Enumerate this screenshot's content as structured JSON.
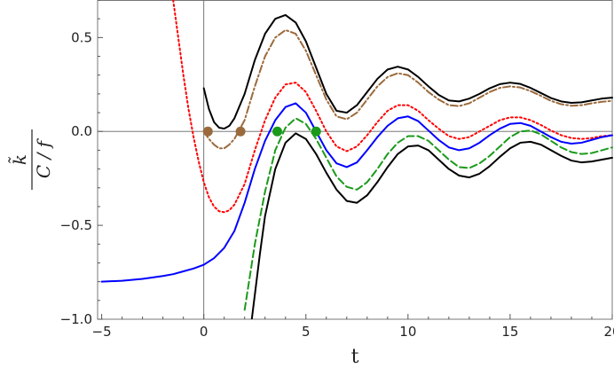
{
  "chart_data": {
    "type": "line",
    "title": "",
    "xlabel": "t",
    "ylabel": {
      "numerator": "k̃",
      "denominator": "C / f"
    },
    "xlim": [
      -5.2,
      20
    ],
    "ylim": [
      -1.0,
      0.7
    ],
    "xticks": [
      -5,
      0,
      5,
      10,
      15,
      20
    ],
    "xtick_labels": [
      "−5",
      "0",
      "5",
      "10",
      "15",
      "20"
    ],
    "yticks": [
      -1.0,
      -0.5,
      0.0,
      0.5
    ],
    "ytick_labels": [
      "−1.0",
      "−0.5",
      "0.0",
      "0.5"
    ],
    "grid": false,
    "legend": "none",
    "series": [
      {
        "color": "#000000",
        "style": "solid",
        "x": [
          0.0,
          0.25,
          0.5,
          0.75,
          1.0,
          1.25,
          1.5,
          2.0,
          2.5,
          3.0,
          3.5,
          4.0,
          4.5,
          5.0,
          5.5,
          6.0,
          6.5,
          7.0,
          7.5,
          8.0,
          8.5,
          9.0,
          9.5,
          10.0,
          10.5,
          11.0,
          11.5,
          12.0,
          12.5,
          13.0,
          13.5,
          14.0,
          14.5,
          15.0,
          15.5,
          16.0,
          16.5,
          17.0,
          17.5,
          18.0,
          18.5,
          19.0,
          19.5,
          20.0
        ],
        "y": [
          0.23,
          0.12,
          0.05,
          0.02,
          0.015,
          0.03,
          0.07,
          0.2,
          0.38,
          0.52,
          0.6,
          0.62,
          0.58,
          0.48,
          0.34,
          0.2,
          0.11,
          0.1,
          0.14,
          0.21,
          0.28,
          0.33,
          0.345,
          0.33,
          0.29,
          0.24,
          0.195,
          0.165,
          0.16,
          0.175,
          0.2,
          0.23,
          0.252,
          0.26,
          0.253,
          0.232,
          0.205,
          0.178,
          0.16,
          0.152,
          0.155,
          0.165,
          0.175,
          0.18
        ]
      },
      {
        "color": "#9b6a3c",
        "style": "dashdot",
        "x": [
          0.0,
          0.25,
          0.5,
          0.75,
          1.0,
          1.25,
          1.5,
          2.0,
          2.5,
          3.0,
          3.5,
          4.0,
          4.5,
          5.0,
          5.5,
          6.0,
          6.5,
          7.0,
          7.5,
          8.0,
          8.5,
          9.0,
          9.5,
          10.0,
          10.5,
          11.0,
          11.5,
          12.0,
          12.5,
          13.0,
          13.5,
          14.0,
          14.5,
          15.0,
          15.5,
          16.0,
          16.5,
          17.0,
          17.5,
          18.0,
          18.5,
          19.0,
          19.5,
          20.0
        ],
        "y": [
          0.0,
          -0.04,
          -0.07,
          -0.09,
          -0.09,
          -0.07,
          -0.04,
          0.06,
          0.24,
          0.4,
          0.5,
          0.54,
          0.52,
          0.43,
          0.3,
          0.17,
          0.08,
          0.065,
          0.1,
          0.17,
          0.24,
          0.29,
          0.31,
          0.3,
          0.26,
          0.21,
          0.17,
          0.14,
          0.135,
          0.15,
          0.18,
          0.21,
          0.232,
          0.24,
          0.234,
          0.215,
          0.19,
          0.163,
          0.145,
          0.137,
          0.14,
          0.15,
          0.158,
          0.163
        ]
      },
      {
        "color": "#ff0000",
        "style": "dotted",
        "x": [
          -1.5,
          -1.25,
          -1.0,
          -0.75,
          -0.5,
          -0.25,
          0.0,
          0.25,
          0.5,
          0.75,
          1.0,
          1.25,
          1.5,
          2.0,
          2.5,
          3.0,
          3.5,
          4.0,
          4.5,
          5.0,
          5.5,
          6.0,
          6.5,
          7.0,
          7.5,
          8.0,
          8.5,
          9.0,
          9.5,
          10.0,
          10.5,
          11.0,
          11.5,
          12.0,
          12.5,
          13.0,
          13.5,
          14.0,
          14.5,
          15.0,
          15.5,
          16.0,
          16.5,
          17.0,
          17.5,
          18.0,
          18.5,
          19.0,
          19.5,
          20.0
        ],
        "y": [
          0.7,
          0.5,
          0.3,
          0.12,
          -0.03,
          -0.16,
          -0.27,
          -0.35,
          -0.4,
          -0.425,
          -0.43,
          -0.42,
          -0.39,
          -0.28,
          -0.1,
          0.06,
          0.18,
          0.25,
          0.26,
          0.21,
          0.11,
          0.0,
          -0.08,
          -0.105,
          -0.08,
          -0.02,
          0.05,
          0.11,
          0.14,
          0.14,
          0.11,
          0.06,
          0.015,
          -0.025,
          -0.04,
          -0.03,
          -0.0,
          0.03,
          0.06,
          0.075,
          0.075,
          0.06,
          0.035,
          0.005,
          -0.02,
          -0.035,
          -0.04,
          -0.035,
          -0.025,
          -0.02
        ]
      },
      {
        "color": "#0000ff",
        "style": "solid",
        "x": [
          -5.0,
          -4.0,
          -3.0,
          -2.0,
          -1.5,
          -1.0,
          -0.5,
          0.0,
          0.5,
          1.0,
          1.5,
          2.0,
          2.5,
          3.0,
          3.5,
          4.0,
          4.5,
          5.0,
          5.5,
          6.0,
          6.5,
          7.0,
          7.5,
          8.0,
          8.5,
          9.0,
          9.5,
          10.0,
          10.5,
          11.0,
          11.5,
          12.0,
          12.5,
          13.0,
          13.5,
          14.0,
          14.5,
          15.0,
          15.5,
          16.0,
          16.5,
          17.0,
          17.5,
          18.0,
          18.5,
          19.0,
          19.5,
          20.0
        ],
        "y": [
          -0.8,
          -0.795,
          -0.785,
          -0.77,
          -0.76,
          -0.745,
          -0.73,
          -0.71,
          -0.675,
          -0.62,
          -0.53,
          -0.38,
          -0.2,
          -0.05,
          0.06,
          0.13,
          0.15,
          0.1,
          0.0,
          -0.1,
          -0.17,
          -0.19,
          -0.165,
          -0.1,
          -0.03,
          0.03,
          0.07,
          0.08,
          0.055,
          0.005,
          -0.045,
          -0.085,
          -0.1,
          -0.09,
          -0.06,
          -0.02,
          0.015,
          0.04,
          0.045,
          0.03,
          0.0,
          -0.03,
          -0.055,
          -0.065,
          -0.06,
          -0.045,
          -0.03,
          -0.02
        ]
      },
      {
        "color": "#1a9a1a",
        "style": "dashed",
        "x": [
          2.0,
          2.5,
          3.0,
          3.5,
          4.0,
          4.5,
          5.0,
          5.5,
          6.0,
          6.5,
          7.0,
          7.5,
          8.0,
          8.5,
          9.0,
          9.5,
          10.0,
          10.5,
          11.0,
          11.5,
          12.0,
          12.5,
          13.0,
          13.5,
          14.0,
          14.5,
          15.0,
          15.5,
          16.0,
          16.5,
          17.0,
          17.5,
          18.0,
          18.5,
          19.0,
          19.5,
          20.0
        ],
        "y": [
          -0.95,
          -0.6,
          -0.32,
          -0.1,
          0.02,
          0.07,
          0.04,
          -0.04,
          -0.14,
          -0.24,
          -0.295,
          -0.31,
          -0.27,
          -0.2,
          -0.12,
          -0.06,
          -0.025,
          -0.025,
          -0.05,
          -0.1,
          -0.15,
          -0.19,
          -0.195,
          -0.17,
          -0.13,
          -0.08,
          -0.03,
          0.0,
          0.005,
          -0.015,
          -0.05,
          -0.085,
          -0.11,
          -0.12,
          -0.115,
          -0.1,
          -0.085
        ]
      },
      {
        "color": "#000000",
        "style": "solid",
        "x": [
          2.35,
          2.75,
          3.0,
          3.5,
          4.0,
          4.5,
          5.0,
          5.5,
          6.0,
          6.5,
          7.0,
          7.5,
          8.0,
          8.5,
          9.0,
          9.5,
          10.0,
          10.5,
          11.0,
          11.5,
          12.0,
          12.5,
          13.0,
          13.5,
          14.0,
          14.5,
          15.0,
          15.5,
          16.0,
          16.5,
          17.0,
          17.5,
          18.0,
          18.5,
          19.0,
          19.5,
          20.0
        ],
        "y": [
          -1.0,
          -0.65,
          -0.45,
          -0.2,
          -0.06,
          -0.01,
          -0.04,
          -0.12,
          -0.22,
          -0.31,
          -0.37,
          -0.38,
          -0.34,
          -0.27,
          -0.19,
          -0.12,
          -0.08,
          -0.075,
          -0.1,
          -0.15,
          -0.2,
          -0.235,
          -0.245,
          -0.225,
          -0.185,
          -0.135,
          -0.09,
          -0.06,
          -0.055,
          -0.07,
          -0.1,
          -0.13,
          -0.155,
          -0.165,
          -0.16,
          -0.15,
          -0.14
        ]
      }
    ],
    "points": [
      {
        "x": 0.2,
        "y": 0.0,
        "color": "#9b6a3c"
      },
      {
        "x": 1.8,
        "y": 0.0,
        "color": "#9b6a3c"
      },
      {
        "x": 3.6,
        "y": 0.0,
        "color": "#1a9a1a"
      },
      {
        "x": 5.5,
        "y": 0.0,
        "color": "#1a9a1a"
      }
    ]
  }
}
